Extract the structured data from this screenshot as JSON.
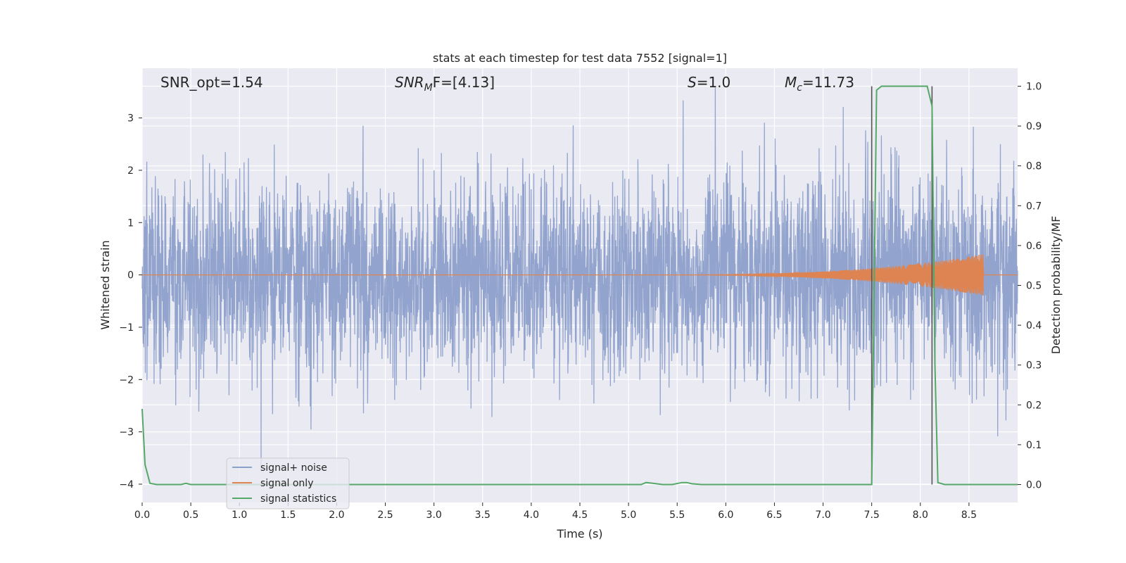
{
  "chart_data": {
    "type": "line",
    "title": "stats at each timestep for test data 7552 [signal=1]",
    "xlabel": "Time (s)",
    "ylabel_left": "Whitened strain",
    "ylabel_right": "Detection probability/MF",
    "xlim": [
      0.0,
      9.0
    ],
    "ylim_left": [
      -4.35,
      3.95
    ],
    "ylim_right": [
      -0.045,
      1.045
    ],
    "x_ticks": [
      "0.0",
      "0.5",
      "1.0",
      "1.5",
      "2.0",
      "2.5",
      "3.0",
      "3.5",
      "4.0",
      "4.5",
      "5.0",
      "5.5",
      "6.0",
      "6.5",
      "7.0",
      "7.5",
      "8.0",
      "8.5"
    ],
    "y_left_ticks": [
      "3",
      "2",
      "1",
      "0",
      "−1",
      "−2",
      "−3",
      "−4"
    ],
    "y_right_ticks": [
      "1.0",
      "0.9",
      "0.8",
      "0.7",
      "0.6",
      "0.5",
      "0.4",
      "0.3",
      "0.2",
      "0.1",
      "0.0"
    ],
    "grid": true,
    "legend_position": "lower-left",
    "annotations": {
      "snr_opt": "SNR_opt=1.54",
      "snr_mf_main": "SNR",
      "snr_mf_sub": "M",
      "snr_mf_rest": "F=[4.13]",
      "s_main": "S",
      "s_rest": "=1.0",
      "mc_main": "M",
      "mc_sub": "c",
      "mc_rest": "=11.73"
    },
    "series": [
      {
        "name": "signal+ noise",
        "color": "#8da0cb",
        "description_values": "white gaussian noise, std approx 0.95, mostly within ±2, peaks to ±3.6"
      },
      {
        "name": "signal only",
        "color": "#dd8452",
        "x_start": 5.0,
        "x_end": 8.65,
        "peak_amplitude": 0.4
      },
      {
        "name": "signal statistics",
        "color": "#55a868",
        "x": [
          0.0,
          0.03,
          0.08,
          0.15,
          0.4,
          0.45,
          0.5,
          1.0,
          2.0,
          3.0,
          4.0,
          5.0,
          5.13,
          5.18,
          5.25,
          5.35,
          5.45,
          5.55,
          5.6,
          5.65,
          5.75,
          6.0,
          7.0,
          7.5,
          7.55,
          7.6,
          7.65,
          8.0,
          8.07,
          8.12,
          8.15,
          8.18,
          8.25,
          9.0
        ],
        "y": [
          0.19,
          0.05,
          0.003,
          0.0,
          0.0,
          0.003,
          0.0,
          0.0,
          0.0,
          0.0,
          0.0,
          0.0,
          0.0,
          0.005,
          0.003,
          0.0,
          0.0,
          0.005,
          0.005,
          0.002,
          0.0,
          0.0,
          0.0,
          0.0,
          0.99,
          1.0,
          1.0,
          1.0,
          1.0,
          0.95,
          0.3,
          0.005,
          0.0,
          0.0
        ]
      }
    ],
    "vertical_lines": [
      {
        "x": 7.5,
        "color": "#555555",
        "y_from": 0.0,
        "y_to": 1.0
      },
      {
        "x": 8.12,
        "color": "#555555",
        "y_from": 0.0,
        "y_to": 1.0
      }
    ]
  }
}
